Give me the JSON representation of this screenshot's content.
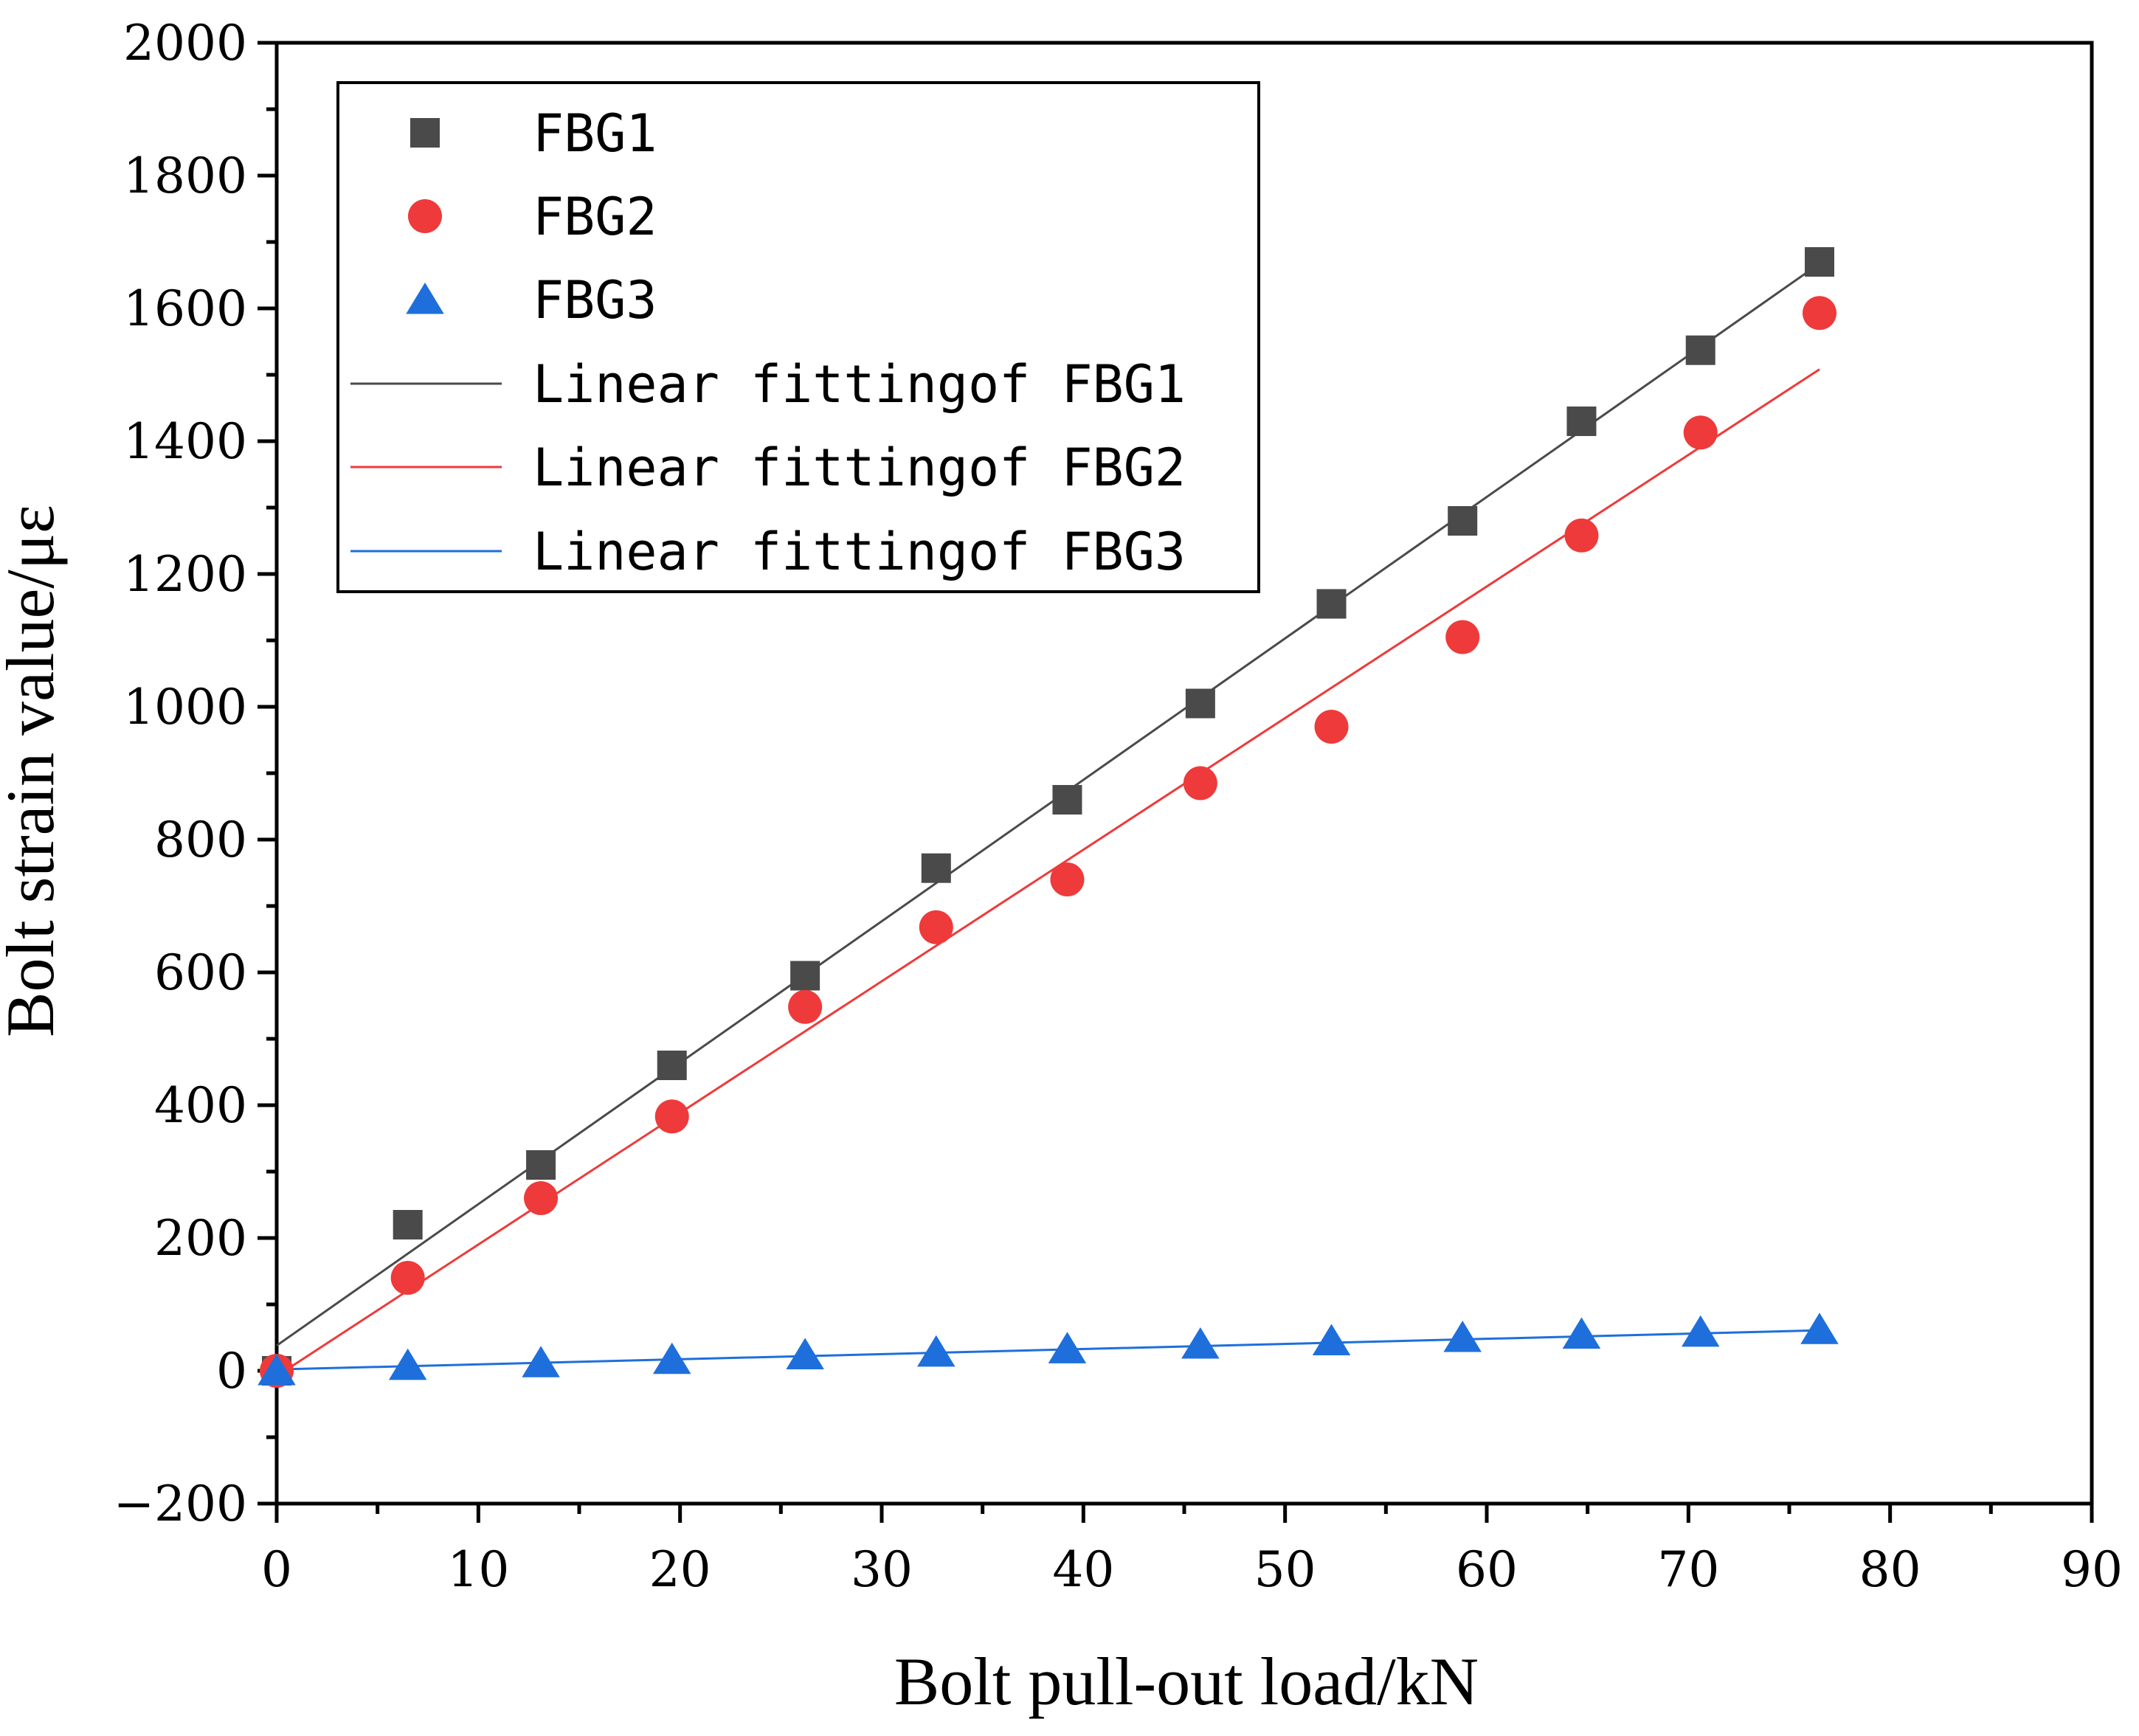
{
  "chart_data": {
    "type": "scatter",
    "title": "",
    "xlabel": "Bolt pull-out load/kN",
    "ylabel": "Bolt strain value/με",
    "xlim": [
      0,
      90
    ],
    "ylim": [
      -200,
      2000
    ],
    "xticks": [
      "0",
      "10",
      "20",
      "30",
      "40",
      "50",
      "60",
      "70",
      "80",
      "90"
    ],
    "yticks": [
      "−200",
      "0",
      "200",
      "400",
      "600",
      "800",
      "1000",
      "1200",
      "1400",
      "1600",
      "1800",
      "2000"
    ],
    "x": [
      0,
      6.5,
      13.1,
      19.6,
      26.2,
      32.7,
      39.2,
      45.8,
      52.3,
      58.8,
      64.7,
      70.6,
      76.5
    ],
    "series": [
      {
        "name": "FBG1",
        "marker": "square",
        "color": "#4a4a4a",
        "values": [
          0,
          220,
          310,
          460,
          595,
          757,
          860,
          1005,
          1155,
          1280,
          1430,
          1537,
          1670
        ]
      },
      {
        "name": "FBG2",
        "marker": "circle",
        "color": "#ee3a3a",
        "values": [
          0,
          140,
          260,
          383,
          548,
          668,
          740,
          885,
          970,
          1105,
          1258,
          1413,
          1593
        ]
      },
      {
        "name": "FBG3",
        "marker": "triangle",
        "color": "#1e6fdc",
        "values": [
          0,
          8,
          12,
          17,
          24,
          28,
          33,
          40,
          45,
          50,
          55,
          58,
          62
        ]
      }
    ],
    "fits": [
      {
        "name": "Linear fittingof FBG1",
        "color": "#4a4a4a",
        "intercept": 38,
        "slope": 21.3,
        "x_range": [
          0,
          76.5
        ]
      },
      {
        "name": "Linear fittingof FBG2",
        "color": "#ee3a3a",
        "intercept": -8,
        "slope": 19.82,
        "x_range": [
          0,
          76.5
        ]
      },
      {
        "name": "Linear fittingof FBG3",
        "color": "#1e6fdc",
        "intercept": 2,
        "slope": 0.77,
        "x_range": [
          0,
          76.5
        ]
      }
    ],
    "legend_position": "top-left",
    "grid": false
  }
}
